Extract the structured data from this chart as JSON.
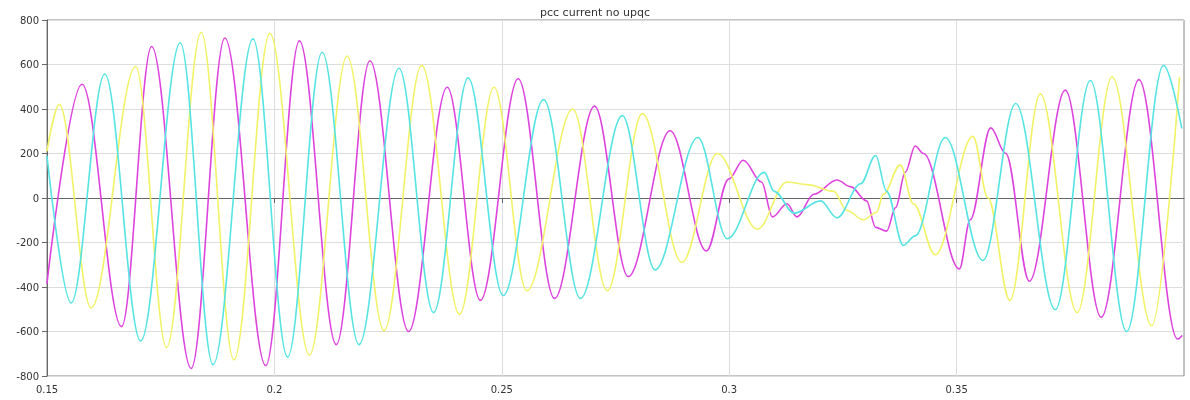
{
  "chart_data": {
    "type": "line",
    "title": "pcc current no upqc",
    "xlim": [
      0.15,
      0.4
    ],
    "xticks": [
      0.15,
      0.2,
      0.25,
      0.3,
      0.35
    ],
    "ylim": [
      -800,
      800
    ],
    "yticks": [
      -800,
      -600,
      -400,
      -200,
      0,
      200,
      400,
      600,
      800
    ],
    "grid": true,
    "marker": "none",
    "line_style": "solid",
    "series": [
      {
        "color": "#dd44dd",
        "x": [
          0.15,
          0.1577,
          0.1664,
          0.173,
          0.1817,
          0.1891,
          0.1981,
          0.2055,
          0.2136,
          0.221,
          0.2295,
          0.238,
          0.2453,
          0.2536,
          0.2616,
          0.2704,
          0.2778,
          0.287,
          0.295,
          0.2999,
          0.3031,
          0.3071,
          0.3095,
          0.3127,
          0.3149,
          0.3186,
          0.3237,
          0.3267,
          0.3302,
          0.3322,
          0.3346,
          0.3366,
          0.3387,
          0.3409,
          0.3427,
          0.3506,
          0.353,
          0.3575,
          0.3608,
          0.366,
          0.3739,
          0.3818,
          0.3901,
          0.3986,
          0.3995
        ],
        "values": [
          -383,
          511,
          -578,
          681,
          -766,
          719,
          -753,
          706,
          -659,
          617,
          -600,
          498,
          -460,
          536,
          -451,
          413,
          -353,
          302,
          -238,
          85,
          170,
          72,
          -85,
          -26,
          -85,
          17,
          81,
          51,
          -13,
          -132,
          -149,
          -43,
          115,
          234,
          200,
          -319,
          -98,
          315,
          200,
          -374,
          485,
          -536,
          532,
          -634,
          -620
        ]
      },
      {
        "color": "#f2f266",
        "x": [
          0.15,
          0.1527,
          0.1597,
          0.1695,
          0.1763,
          0.1839,
          0.1911,
          0.199,
          0.2077,
          0.216,
          0.2241,
          0.2324,
          0.2407,
          0.2483,
          0.2555,
          0.2656,
          0.2732,
          0.2809,
          0.2896,
          0.2974,
          0.3062,
          0.3127,
          0.3171,
          0.323,
          0.3258,
          0.3295,
          0.3324,
          0.3339,
          0.3376,
          0.3405,
          0.3453,
          0.3536,
          0.3569,
          0.3617,
          0.3684,
          0.3765,
          0.3842,
          0.3929,
          0.399
        ],
        "values": [
          213,
          421,
          -494,
          591,
          -672,
          745,
          -728,
          740,
          -706,
          638,
          -596,
          596,
          -523,
          498,
          -417,
          400,
          -417,
          379,
          -289,
          200,
          -140,
          72,
          60,
          30,
          -55,
          -98,
          -64,
          17,
          149,
          -26,
          -255,
          277,
          0,
          -460,
          468,
          -515,
          545,
          -574,
          540
        ]
      },
      {
        "color": "#55e3e3",
        "x": [
          0.15,
          0.1553,
          0.1627,
          0.1706,
          0.1793,
          0.1865,
          0.1953,
          0.2029,
          0.2105,
          0.2186,
          0.2274,
          0.235,
          0.2426,
          0.2503,
          0.2592,
          0.2673,
          0.2765,
          0.2837,
          0.2931,
          0.2996,
          0.3077,
          0.3099,
          0.3143,
          0.3201,
          0.3237,
          0.3289,
          0.3322,
          0.3346,
          0.3383,
          0.3409,
          0.3475,
          0.3558,
          0.363,
          0.3717,
          0.3794,
          0.3874,
          0.3955,
          0.3995
        ],
        "values": [
          187,
          -472,
          557,
          -643,
          698,
          -749,
          715,
          -715,
          655,
          -659,
          583,
          -515,
          540,
          -438,
          442,
          -451,
          370,
          -323,
          272,
          -183,
          115,
          30,
          -68,
          -13,
          -89,
          64,
          191,
          30,
          -213,
          -170,
          272,
          -281,
          425,
          -502,
          528,
          -600,
          596,
          315
        ]
      }
    ]
  }
}
